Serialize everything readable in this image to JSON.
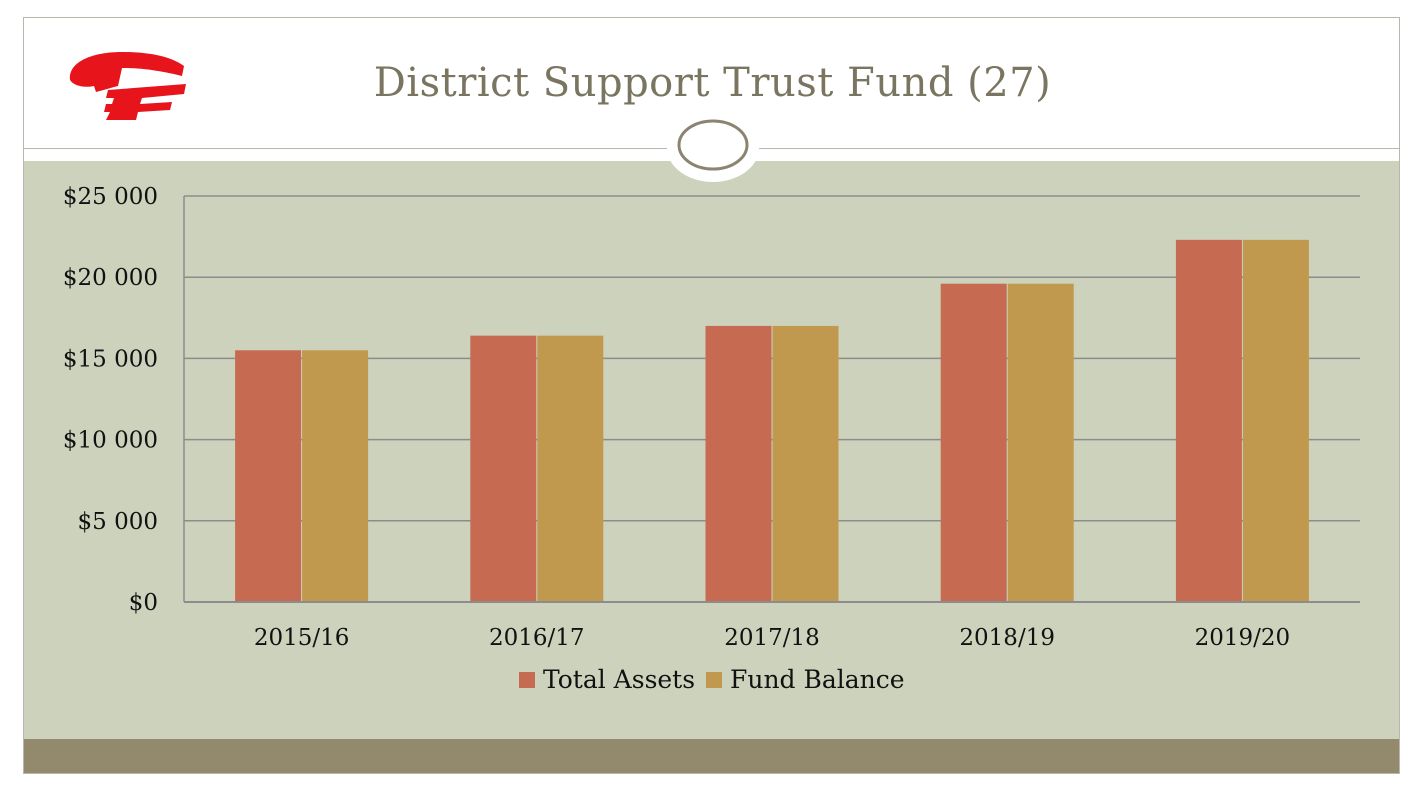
{
  "slide": {
    "title": "District Support Trust Fund (27)",
    "logo_icon": "red-cf-logo",
    "ornament_icon": "oval-ornament",
    "colors": {
      "header": "#ffffff",
      "content_background": "#cdd2bd",
      "footer": "#938a6e",
      "title_text": "#7a7560",
      "logo_red": "#e8141c"
    }
  },
  "chart_data": {
    "type": "bar",
    "title": "",
    "xlabel": "",
    "ylabel": "",
    "categories": [
      "2015/16",
      "2016/17",
      "2017/18",
      "2018/19",
      "2019/20"
    ],
    "series": [
      {
        "name": "Total Assets",
        "color": "#c66b51",
        "values": [
          15500,
          16400,
          17000,
          19600,
          22300
        ]
      },
      {
        "name": "Fund Balance",
        "color": "#c0994e",
        "values": [
          15500,
          16400,
          17000,
          19600,
          22300
        ]
      }
    ],
    "ylim": [
      0,
      25000
    ],
    "yticks": [
      0,
      5000,
      10000,
      15000,
      20000,
      25000
    ],
    "ytick_labels": [
      "$0",
      "$5 000",
      "$10 000",
      "$15 000",
      "$20 000",
      "$25 000"
    ],
    "grid": true,
    "legend_position": "bottom"
  }
}
